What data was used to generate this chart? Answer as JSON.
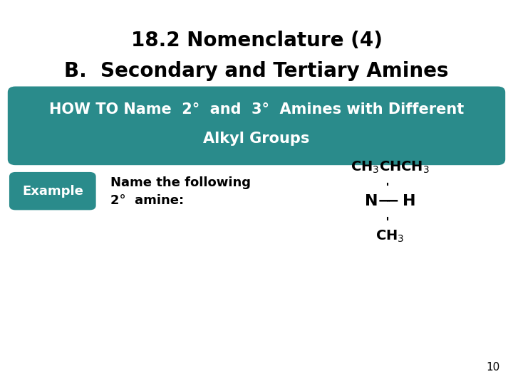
{
  "title_line1": "18.2 Nomenclature (4)",
  "title_line2": "B.  Secondary and Tertiary Amines",
  "title_fontsize": 20,
  "howto_box_color": "#2a8b8b",
  "howto_text_line1": "HOW TO Name  2°  and  3°  Amines with Different",
  "howto_text_line2": "Alkyl Groups",
  "howto_text_color": "#ffffff",
  "howto_fontsize": 15,
  "example_box_color": "#2a8b8b",
  "example_text": "Example",
  "example_text_color": "#ffffff",
  "example_fontsize": 13,
  "desc_text_line1": "Name the following",
  "desc_text_line2": "2°  amine:",
  "desc_fontsize": 13,
  "background_color": "#ffffff",
  "page_number": "10",
  "mol_fontsize": 14
}
